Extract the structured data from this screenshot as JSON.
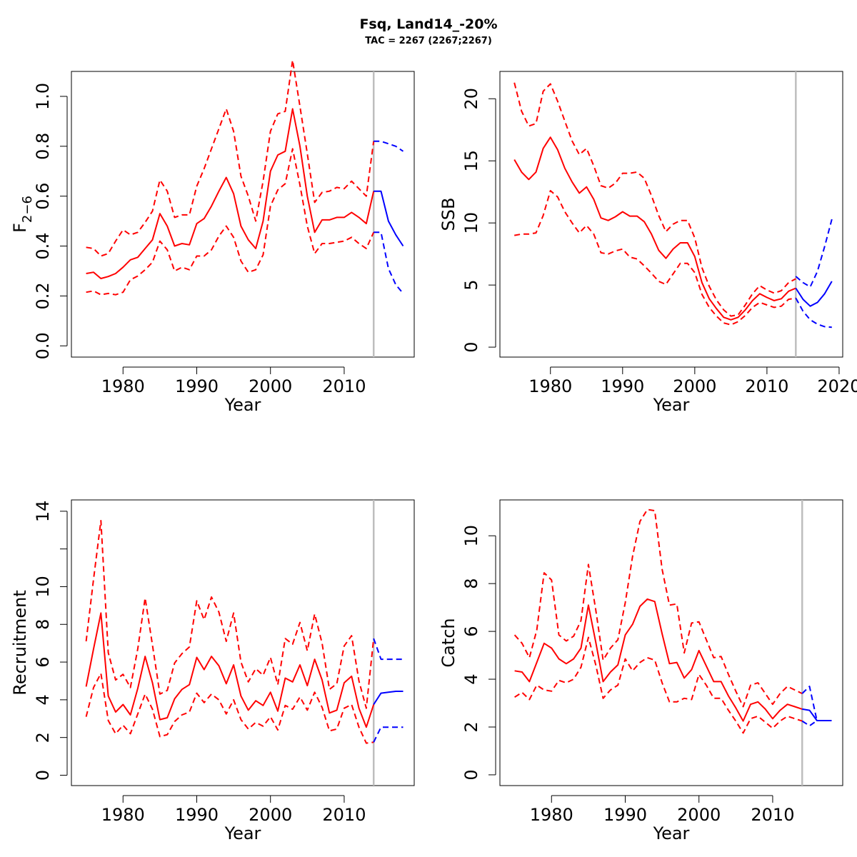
{
  "title": "Fsq, Land14_-20%",
  "subtitle": "TAC = 2267 (2267;2267)",
  "colors": {
    "historic": "#ff0000",
    "projection": "#0000ff",
    "divider": "#bebebe",
    "axis": "#000000"
  },
  "chart_data": [
    {
      "type": "line",
      "id": "f",
      "ylabel_base": "F",
      "ylabel_sub": "2−6",
      "xlabel": "Year",
      "xlim": [
        1973,
        2019.5
      ],
      "ylim": [
        -0.045,
        1.1
      ],
      "xticks": [
        1980,
        1990,
        2000,
        2010
      ],
      "yticks": [
        0.0,
        0.2,
        0.4,
        0.6,
        0.8,
        1.0
      ],
      "ytick_labels": [
        "0.0",
        "0.2",
        "0.4",
        "0.6",
        "0.8",
        "1.0"
      ],
      "divider_x": 2014,
      "historic": {
        "x": [
          1975,
          1976,
          1977,
          1978,
          1979,
          1980,
          1981,
          1982,
          1983,
          1984,
          1985,
          1986,
          1987,
          1988,
          1989,
          1990,
          1991,
          1992,
          1993,
          1994,
          1995,
          1996,
          1997,
          1998,
          1999,
          2000,
          2001,
          2002,
          2003,
          2004,
          2005,
          2006,
          2007,
          2008,
          2009,
          2010,
          2011,
          2012,
          2013,
          2014
        ],
        "mid": [
          0.29,
          0.295,
          0.27,
          0.278,
          0.29,
          0.315,
          0.345,
          0.355,
          0.39,
          0.425,
          0.53,
          0.48,
          0.4,
          0.41,
          0.405,
          0.49,
          0.51,
          0.56,
          0.62,
          0.675,
          0.61,
          0.48,
          0.425,
          0.39,
          0.5,
          0.7,
          0.765,
          0.78,
          0.95,
          0.8,
          0.6,
          0.455,
          0.505,
          0.505,
          0.515,
          0.515,
          0.535,
          0.515,
          0.49,
          0.62
        ],
        "upper": [
          0.395,
          0.39,
          0.36,
          0.37,
          0.42,
          0.465,
          0.445,
          0.455,
          0.495,
          0.54,
          0.665,
          0.62,
          0.515,
          0.525,
          0.525,
          0.64,
          0.71,
          0.79,
          0.87,
          0.95,
          0.86,
          0.68,
          0.6,
          0.5,
          0.66,
          0.86,
          0.93,
          0.94,
          1.145,
          0.96,
          0.77,
          0.575,
          0.615,
          0.62,
          0.635,
          0.63,
          0.66,
          0.63,
          0.6,
          0.82
        ],
        "lower": [
          0.215,
          0.22,
          0.205,
          0.21,
          0.205,
          0.215,
          0.265,
          0.28,
          0.305,
          0.335,
          0.42,
          0.385,
          0.3,
          0.315,
          0.305,
          0.36,
          0.36,
          0.385,
          0.44,
          0.48,
          0.435,
          0.34,
          0.295,
          0.305,
          0.365,
          0.56,
          0.625,
          0.65,
          0.79,
          0.645,
          0.48,
          0.37,
          0.41,
          0.41,
          0.415,
          0.42,
          0.435,
          0.41,
          0.39,
          0.455
        ]
      },
      "projection": {
        "x": [
          2014,
          2015,
          2016,
          2017,
          2018
        ],
        "mid": [
          0.62,
          0.62,
          0.5,
          0.445,
          0.4
        ],
        "upper": [
          0.82,
          0.82,
          0.81,
          0.8,
          0.78
        ],
        "lower": [
          0.455,
          0.455,
          0.31,
          0.245,
          0.21
        ]
      }
    },
    {
      "type": "line",
      "id": "ssb",
      "ylabel": "SSB",
      "xlabel": "Year",
      "xlim": [
        1973,
        2020.5
      ],
      "ylim": [
        -0.8,
        22.2
      ],
      "xticks": [
        1980,
        1990,
        2000,
        2010,
        2020
      ],
      "yticks": [
        0,
        5,
        10,
        15,
        20
      ],
      "ytick_labels": [
        "0",
        "5",
        "10",
        "15",
        "20"
      ],
      "divider_x": 2014,
      "historic": {
        "x": [
          1975,
          1976,
          1977,
          1978,
          1979,
          1980,
          1981,
          1982,
          1983,
          1984,
          1985,
          1986,
          1987,
          1988,
          1989,
          1990,
          1991,
          1992,
          1993,
          1994,
          1995,
          1996,
          1997,
          1998,
          1999,
          2000,
          2001,
          2002,
          2003,
          2004,
          2005,
          2006,
          2007,
          2008,
          2009,
          2010,
          2011,
          2012,
          2013,
          2014
        ],
        "mid": [
          15.1,
          14.1,
          13.5,
          14.1,
          16.0,
          16.9,
          15.9,
          14.4,
          13.3,
          12.4,
          12.9,
          11.9,
          10.4,
          10.2,
          10.5,
          10.9,
          10.55,
          10.55,
          10.1,
          9.1,
          7.8,
          7.15,
          7.9,
          8.4,
          8.4,
          7.3,
          5.2,
          3.9,
          3.1,
          2.4,
          2.2,
          2.4,
          3.0,
          3.75,
          4.3,
          4.0,
          3.75,
          3.9,
          4.5,
          4.75
        ],
        "upper": [
          21.3,
          19.0,
          17.8,
          18.0,
          20.6,
          21.2,
          19.8,
          18.2,
          16.6,
          15.5,
          16.0,
          14.6,
          13.0,
          12.8,
          13.2,
          14.0,
          14.0,
          14.1,
          13.6,
          12.2,
          10.6,
          9.3,
          9.9,
          10.2,
          10.2,
          8.8,
          6.4,
          4.9,
          3.8,
          3.0,
          2.5,
          2.6,
          3.4,
          4.3,
          4.95,
          4.6,
          4.35,
          4.55,
          5.2,
          5.5
        ],
        "lower": [
          9.0,
          9.1,
          9.1,
          9.2,
          10.6,
          12.6,
          12.1,
          10.9,
          10.0,
          9.2,
          9.8,
          9.1,
          7.6,
          7.5,
          7.75,
          7.9,
          7.25,
          7.1,
          6.55,
          5.95,
          5.3,
          5.05,
          5.9,
          6.75,
          6.75,
          6.0,
          4.25,
          3.2,
          2.5,
          1.95,
          1.8,
          2.05,
          2.55,
          3.2,
          3.6,
          3.4,
          3.2,
          3.3,
          3.85,
          3.95
        ]
      },
      "projection": {
        "x": [
          2014,
          2015,
          2016,
          2017,
          2018,
          2019
        ],
        "mid": [
          4.75,
          3.85,
          3.3,
          3.6,
          4.3,
          5.3
        ],
        "upper": [
          5.7,
          5.2,
          4.85,
          6.1,
          8.1,
          10.3
        ],
        "lower": [
          3.95,
          2.9,
          2.2,
          1.85,
          1.65,
          1.6
        ]
      }
    },
    {
      "type": "line",
      "id": "recruitment",
      "ylabel": "Recruitment",
      "xlabel": "Year",
      "xlim": [
        1973,
        2019.5
      ],
      "ylim": [
        -0.55,
        14.6
      ],
      "xticks": [
        1980,
        1990,
        2000,
        2010
      ],
      "yticks": [
        0,
        2,
        4,
        6,
        8,
        10,
        12,
        14
      ],
      "ytick_labels": [
        "0",
        "2",
        "4",
        "6",
        "8",
        "10",
        "",
        "14"
      ],
      "divider_x": 2014,
      "historic": {
        "x": [
          1975,
          1976,
          1977,
          1978,
          1979,
          1980,
          1981,
          1982,
          1983,
          1984,
          1985,
          1986,
          1987,
          1988,
          1989,
          1990,
          1991,
          1992,
          1993,
          1994,
          1995,
          1996,
          1997,
          1998,
          1999,
          2000,
          2001,
          2002,
          2003,
          2004,
          2005,
          2006,
          2007,
          2008,
          2009,
          2010,
          2011,
          2012,
          2013,
          2014
        ],
        "mid": [
          4.7,
          6.7,
          8.6,
          4.2,
          3.35,
          3.75,
          3.2,
          4.6,
          6.3,
          4.9,
          2.95,
          3.05,
          4.05,
          4.55,
          4.8,
          6.25,
          5.6,
          6.3,
          5.8,
          4.85,
          5.85,
          4.2,
          3.45,
          3.95,
          3.7,
          4.4,
          3.4,
          5.15,
          4.95,
          5.85,
          4.75,
          6.15,
          5.05,
          3.3,
          3.45,
          4.9,
          5.25,
          3.55,
          2.55,
          3.75
        ],
        "upper": [
          7.1,
          10.4,
          13.5,
          6.5,
          5.05,
          5.35,
          4.65,
          6.7,
          9.4,
          6.9,
          4.3,
          4.5,
          5.95,
          6.45,
          6.8,
          9.25,
          8.25,
          9.45,
          8.65,
          7.1,
          8.6,
          6.0,
          4.95,
          5.65,
          5.3,
          6.25,
          4.8,
          7.25,
          6.95,
          8.1,
          6.6,
          8.55,
          7.0,
          4.55,
          4.85,
          6.85,
          7.4,
          5.0,
          3.55,
          7.25
        ],
        "lower": [
          3.1,
          4.65,
          5.4,
          2.9,
          2.2,
          2.65,
          2.2,
          3.25,
          4.3,
          3.5,
          2.05,
          2.15,
          2.85,
          3.2,
          3.35,
          4.35,
          3.85,
          4.3,
          4.0,
          3.25,
          4.0,
          2.95,
          2.45,
          2.8,
          2.6,
          3.1,
          2.4,
          3.7,
          3.5,
          4.15,
          3.45,
          4.4,
          3.6,
          2.35,
          2.45,
          3.55,
          3.75,
          2.55,
          1.7,
          1.75
        ]
      },
      "projection": {
        "x": [
          2014,
          2015,
          2016,
          2017,
          2018
        ],
        "mid": [
          3.75,
          4.35,
          4.4,
          4.45,
          4.45
        ],
        "upper": [
          7.25,
          6.15,
          6.15,
          6.15,
          6.15
        ],
        "lower": [
          1.75,
          2.55,
          2.55,
          2.55,
          2.55
        ]
      }
    },
    {
      "type": "line",
      "id": "catch",
      "ylabel": "Catch",
      "xlabel": "Year",
      "xlim": [
        1973,
        2019.5
      ],
      "ylim": [
        -0.45,
        11.5
      ],
      "xticks": [
        1980,
        1990,
        2000,
        2010
      ],
      "yticks": [
        0,
        2,
        4,
        6,
        8,
        10
      ],
      "ytick_labels": [
        "0",
        "2",
        "4",
        "6",
        "8",
        "10"
      ],
      "divider_x": 2014,
      "historic": {
        "x": [
          1975,
          1976,
          1977,
          1978,
          1979,
          1980,
          1981,
          1982,
          1983,
          1984,
          1985,
          1986,
          1987,
          1988,
          1989,
          1990,
          1991,
          1992,
          1993,
          1994,
          1995,
          1996,
          1997,
          1998,
          1999,
          2000,
          2001,
          2002,
          2003,
          2004,
          2005,
          2006,
          2007,
          2008,
          2009,
          2010,
          2011,
          2012,
          2013,
          2014
        ],
        "mid": [
          4.35,
          4.3,
          3.9,
          4.7,
          5.5,
          5.3,
          4.85,
          4.65,
          4.85,
          5.3,
          7.1,
          5.55,
          3.9,
          4.3,
          4.6,
          5.85,
          6.3,
          7.05,
          7.35,
          7.25,
          5.9,
          4.65,
          4.7,
          4.05,
          4.4,
          5.2,
          4.55,
          3.9,
          3.9,
          3.3,
          2.8,
          2.25,
          2.95,
          3.05,
          2.75,
          2.35,
          2.7,
          2.95,
          2.85,
          2.75
        ],
        "upper": [
          5.85,
          5.5,
          4.9,
          6.05,
          8.45,
          8.15,
          5.85,
          5.6,
          5.8,
          6.45,
          8.8,
          6.9,
          4.8,
          5.3,
          5.65,
          7.2,
          9.15,
          10.6,
          11.1,
          11.05,
          8.6,
          7.1,
          7.15,
          5.1,
          6.35,
          6.4,
          5.65,
          4.9,
          4.95,
          4.2,
          3.5,
          2.85,
          3.75,
          3.85,
          3.4,
          2.95,
          3.4,
          3.7,
          3.55,
          3.4
        ],
        "lower": [
          3.25,
          3.45,
          3.15,
          3.75,
          3.55,
          3.5,
          3.95,
          3.85,
          4.0,
          4.5,
          5.75,
          4.6,
          3.2,
          3.55,
          3.75,
          4.85,
          4.35,
          4.7,
          4.9,
          4.8,
          3.85,
          3.05,
          3.05,
          3.2,
          3.15,
          4.2,
          3.75,
          3.2,
          3.2,
          2.7,
          2.25,
          1.75,
          2.35,
          2.45,
          2.2,
          1.95,
          2.25,
          2.45,
          2.35,
          2.25
        ]
      },
      "projection": {
        "x": [
          2014,
          2015,
          2016,
          2017,
          2018
        ],
        "mid": [
          2.75,
          2.7,
          2.27,
          2.27,
          2.27
        ],
        "upper": [
          3.4,
          3.7,
          2.27,
          2.27,
          2.27
        ],
        "lower": [
          2.25,
          2.05,
          2.27,
          2.27,
          2.27
        ]
      }
    }
  ]
}
